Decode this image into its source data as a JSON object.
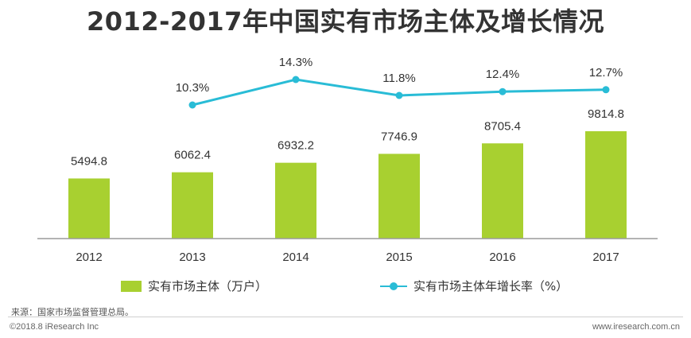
{
  "title": "2012-2017年中国实有市场主体及增长情况",
  "colors": {
    "bar": "#a8d030",
    "line": "#29bcd6",
    "axis": "#9a9a9a",
    "text": "#333333"
  },
  "chart_data": {
    "type": "bar",
    "title": "2012-2017年中国实有市场主体及增长情况",
    "categories": [
      "2012",
      "2013",
      "2014",
      "2015",
      "2016",
      "2017"
    ],
    "series": [
      {
        "name": "实有市场主体（万户）",
        "type": "bar",
        "values": [
          5494.8,
          6062.4,
          6932.2,
          7746.9,
          8705.4,
          9814.8
        ],
        "labels": [
          "5494.8",
          "6062.4",
          "6932.2",
          "7746.9",
          "8705.4",
          "9814.8"
        ]
      },
      {
        "name": "实有市场主体年增长率（%）",
        "type": "line",
        "values": [
          null,
          10.3,
          14.3,
          11.8,
          12.4,
          12.7
        ],
        "labels": [
          "",
          "10.3%",
          "14.3%",
          "11.8%",
          "12.4%",
          "12.7%"
        ]
      }
    ],
    "xlabel": "",
    "ylabel": "",
    "legend_position": "bottom",
    "grid": false
  },
  "legend": {
    "bar_label": "实有市场主体（万户）",
    "line_label": "实有市场主体年增长率（%）"
  },
  "footer": {
    "source": "来源：国家市场监督管理总局。",
    "copyright": "©2018.8 iResearch Inc",
    "website": "www.iresearch.com.cn"
  }
}
